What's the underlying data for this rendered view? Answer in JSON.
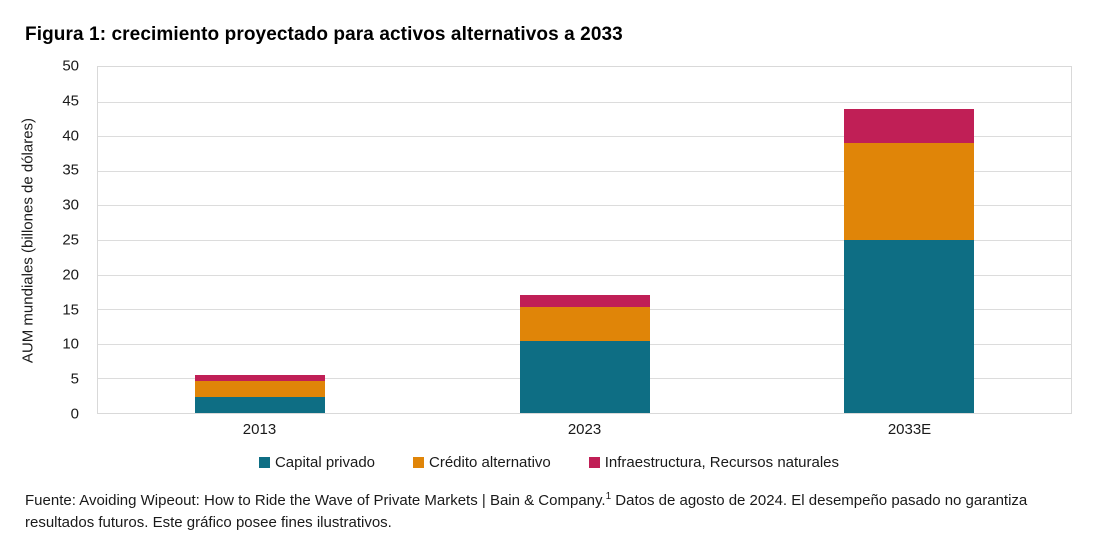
{
  "title": "Figura 1: crecimiento proyectado para activos alternativos a 2033",
  "footer": {
    "part1": "Fuente: Avoiding Wipeout: How to Ride the Wave of Private Markets | Bain & Company.",
    "sup": "1",
    "part2": " Datos de agosto de 2024. El desempeño pasado no garantiza resultados futuros. Este gráfico posee fines ilustrativos."
  },
  "colors": {
    "capital_privado": "#0e6e84",
    "credito_alternativo": "#e08508",
    "infraestructura": "#c01f56",
    "gridline": "#dcdcdc",
    "text": "#1a1a1a"
  },
  "chart_data": {
    "type": "bar",
    "stacked": true,
    "title": "Figura 1: crecimiento proyectado para activos alternativos a 2033",
    "categories": [
      "2013",
      "2023",
      "2033E"
    ],
    "series": [
      {
        "name": "Capital privado",
        "color": "#0e6e84",
        "values": [
          2.3,
          10.4,
          25.0
        ]
      },
      {
        "name": "Crédito alternativo",
        "color": "#e08508",
        "values": [
          2.3,
          4.9,
          14.0
        ]
      },
      {
        "name": "Infraestructura, Recursos naturales",
        "color": "#c01f56",
        "values": [
          0.9,
          1.8,
          5.0
        ]
      }
    ],
    "totals": [
      5.5,
      17.1,
      44.0
    ],
    "xlabel": "",
    "ylabel": "AUM mundiales (billones de dólares)",
    "ylim": [
      0,
      50
    ],
    "ytick_step": 5,
    "grid": "horizontal",
    "legend_position": "bottom"
  }
}
